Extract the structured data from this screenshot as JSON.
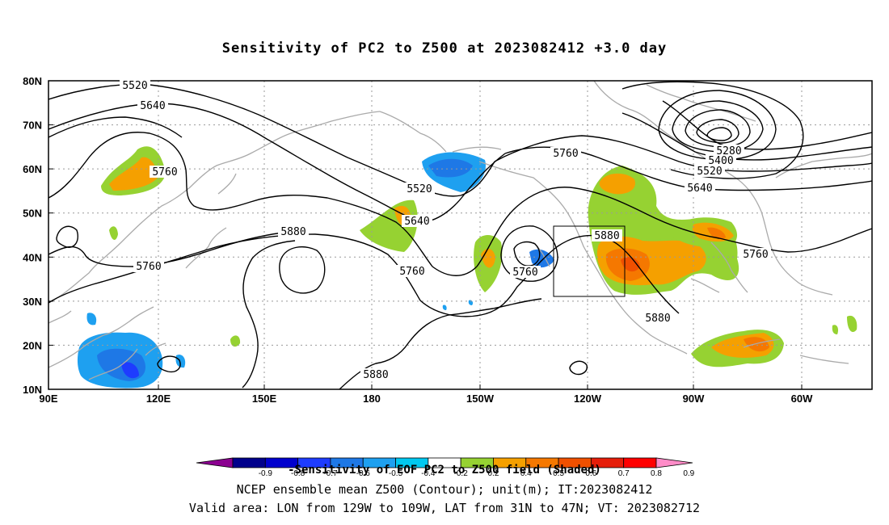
{
  "title": "Sensitivity of PC2 to Z500 at 2023082412 +3.0 day",
  "axes": {
    "y_ticks": [
      "80N",
      "70N",
      "60N",
      "50N",
      "40N",
      "30N",
      "20N",
      "10N"
    ],
    "x_ticks": [
      "90E",
      "120E",
      "150E",
      "180",
      "150W",
      "120W",
      "90W",
      "60W"
    ]
  },
  "contour_labels": [
    {
      "text": "5520",
      "name": "contour-label-5520-a"
    },
    {
      "text": "5640",
      "name": "contour-label-5640-a"
    },
    {
      "text": "5760",
      "name": "contour-label-5760-a"
    },
    {
      "text": "5760",
      "name": "contour-label-5760-b"
    },
    {
      "text": "5520",
      "name": "contour-label-5520-b"
    },
    {
      "text": "5640",
      "name": "contour-label-5640-b"
    },
    {
      "text": "5880",
      "name": "contour-label-5880-a"
    },
    {
      "text": "5760",
      "name": "contour-label-5760-c"
    },
    {
      "text": "5760",
      "name": "contour-label-5760-d"
    },
    {
      "text": "5760",
      "name": "contour-label-5760-e"
    },
    {
      "text": "5880",
      "name": "contour-label-5880-b"
    },
    {
      "text": "5880",
      "name": "contour-label-5880-c"
    },
    {
      "text": "5880",
      "name": "contour-label-5880-d"
    },
    {
      "text": "5280",
      "name": "contour-label-5280"
    },
    {
      "text": "5400",
      "name": "contour-label-5400"
    },
    {
      "text": "5520",
      "name": "contour-label-5520-c"
    },
    {
      "text": "5640",
      "name": "contour-label-5640-c"
    },
    {
      "text": "5760",
      "name": "contour-label-5760-f"
    }
  ],
  "colorbar": {
    "colors": [
      "#8b0090",
      "#00008b",
      "#0000cd",
      "#1e3cff",
      "#1e78e6",
      "#1ea0f0",
      "#00c8f0",
      "#ffffff",
      "#96d232",
      "#f5a000",
      "#f57800",
      "#f05000",
      "#e61e0a",
      "#ff0000",
      "#ff8cc8"
    ],
    "labels": [
      "-0.9",
      "-0.8",
      "-0.7",
      "-0.6",
      "-0.5",
      "-0.4",
      "-0.2",
      "0.2",
      "0.4",
      "0.5",
      "0.6",
      "0.7",
      "0.8",
      "0.9"
    ]
  },
  "colorbar_caption": "-Sensitivity of EOF PC2 to Z500 field (Shaded)",
  "footer": {
    "line1": "NCEP ensemble mean Z500 (Contour); unit(m); IT:2023082412",
    "line2": "Valid area: LON from 129W to 109W, LAT from 31N to 47N; VT: 2023082712"
  },
  "valid_area": {
    "lon_range": [
      "129W",
      "109W"
    ],
    "lat_range": [
      "31N",
      "47N"
    ]
  }
}
